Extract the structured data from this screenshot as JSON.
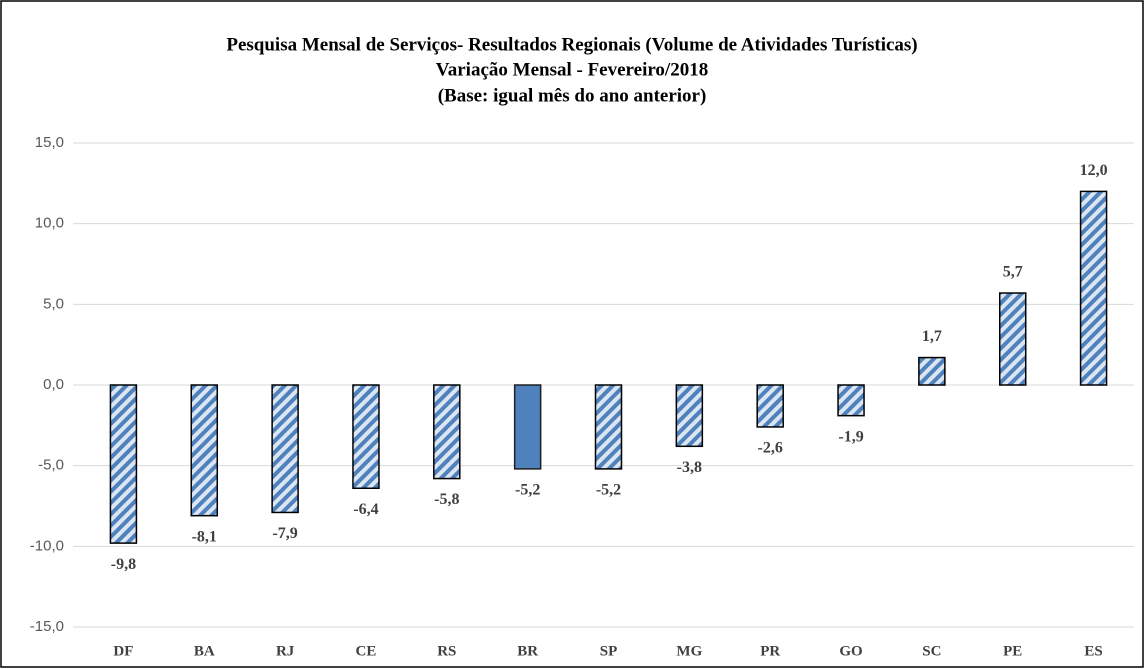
{
  "chart_data": {
    "type": "bar",
    "title": [
      "Pesquisa Mensal de Serviços- Resultados Regionais (Volume de Atividades Turísticas)",
      "Variação Mensal - Fevereiro/2018",
      "(Base: igual mês  do ano anterior)"
    ],
    "categories": [
      "DF",
      "BA",
      "RJ",
      "CE",
      "RS",
      "BR",
      "SP",
      "MG",
      "PR",
      "GO",
      "SC",
      "PE",
      "ES"
    ],
    "values": [
      -9.8,
      -8.1,
      -7.9,
      -6.4,
      -5.8,
      -5.2,
      -5.2,
      -3.8,
      -2.6,
      -1.9,
      1.7,
      5.7,
      12.0
    ],
    "value_labels": [
      "-9,8",
      "-8,1",
      "-7,9",
      "-6,4",
      "-5,8",
      "-5,2",
      "-5,2",
      "-3,8",
      "-2,6",
      "-1,9",
      "1,7",
      "5,7",
      "12,0"
    ],
    "bar_styles": [
      "hatch",
      "hatch",
      "hatch",
      "hatch",
      "hatch",
      "solid",
      "hatch",
      "hatch",
      "hatch",
      "hatch",
      "hatch",
      "hatch",
      "hatch"
    ],
    "color": "#4f81bd",
    "hatch_background": "#dce6f2",
    "ylim": [
      -15,
      15
    ],
    "yticks": [
      {
        "value": -15,
        "label": "-15,0"
      },
      {
        "value": -10,
        "label": "-10,0"
      },
      {
        "value": -5,
        "label": "-5,0"
      },
      {
        "value": 0,
        "label": "0,0"
      },
      {
        "value": 5,
        "label": "5,0"
      },
      {
        "value": 10,
        "label": "10,0"
      },
      {
        "value": 15,
        "label": "15,0"
      }
    ],
    "grid": true
  }
}
